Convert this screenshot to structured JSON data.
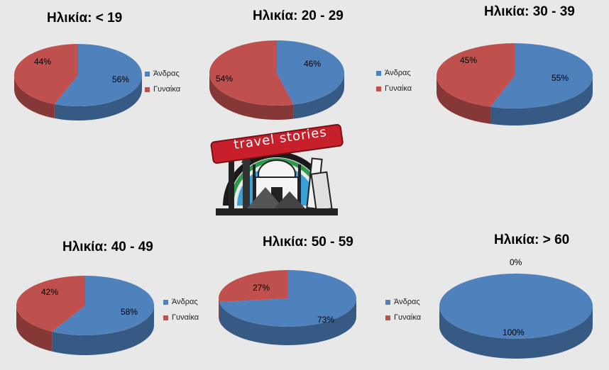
{
  "colors": {
    "male": "#4f81bd",
    "female": "#c0504d",
    "background": "#e8e8e8"
  },
  "logo_text": "travel stories",
  "chart_data": [
    {
      "type": "pie",
      "title": "Ηλικία: < 19",
      "categories": [
        "Άνδρας",
        "Γυναίκα"
      ],
      "values": [
        56,
        44
      ],
      "labels": [
        "56%",
        "44%"
      ],
      "legend": [
        "Άνδρας",
        "Γυναίκα"
      ]
    },
    {
      "type": "pie",
      "title": "Ηλικία: 20 - 29",
      "categories": [
        "Άνδρας",
        "Γυναίκα"
      ],
      "values": [
        46,
        54
      ],
      "labels": [
        "46%",
        "54%"
      ],
      "legend": [
        "Άνδρας",
        "Γυναίκα"
      ]
    },
    {
      "type": "pie",
      "title": "Ηλικία: 30 - 39",
      "categories": [
        "Άνδρας",
        "Γυναίκα"
      ],
      "values": [
        55,
        45
      ],
      "labels": [
        "55%",
        "45%"
      ],
      "legend": []
    },
    {
      "type": "pie",
      "title": "Ηλικία: 40 - 49",
      "categories": [
        "Άνδρας",
        "Γυναίκα"
      ],
      "values": [
        58,
        42
      ],
      "labels": [
        "58%",
        "42%"
      ],
      "legend": [
        "Άνδρας",
        "Γυναίκα"
      ]
    },
    {
      "type": "pie",
      "title": "Ηλικία: 50 - 59",
      "categories": [
        "Άνδρας",
        "Γυναίκα"
      ],
      "values": [
        73,
        27
      ],
      "labels": [
        "73%",
        "27%"
      ],
      "legend": [
        "Άνδρας",
        "Γυναίκα"
      ]
    },
    {
      "type": "pie",
      "title": "Ηλικία: > 60",
      "categories": [
        "Άνδρας",
        "Γυναίκα"
      ],
      "values": [
        100,
        0
      ],
      "labels": [
        "100%",
        "0%"
      ],
      "legend": []
    }
  ]
}
